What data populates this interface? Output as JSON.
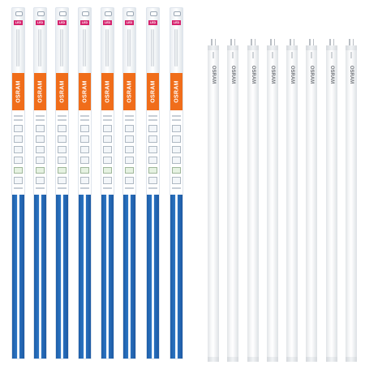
{
  "image": {
    "description_free": true
  },
  "packages": {
    "count": 8,
    "items": [
      {
        "brand": "OSRAM",
        "badge": "LED"
      },
      {
        "brand": "OSRAM",
        "badge": "LED"
      },
      {
        "brand": "OSRAM",
        "badge": "LED"
      },
      {
        "brand": "OSRAM",
        "badge": "LED"
      },
      {
        "brand": "OSRAM",
        "badge": "LED"
      },
      {
        "brand": "OSRAM",
        "badge": "LED"
      },
      {
        "brand": "OSRAM",
        "badge": "LED"
      },
      {
        "brand": "OSRAM",
        "badge": "LED"
      }
    ],
    "colors": {
      "box": "#2d78c8",
      "brand_band": "#f06d1a",
      "badge": "#d6246e"
    }
  },
  "tubes": {
    "count": 8,
    "items": [
      {
        "brand": "OSRAM"
      },
      {
        "brand": "OSRAM"
      },
      {
        "brand": "OSRAM"
      },
      {
        "brand": "OSRAM"
      },
      {
        "brand": "OSRAM"
      },
      {
        "brand": "OSRAM"
      },
      {
        "brand": "OSRAM"
      },
      {
        "brand": "OSRAM"
      }
    ]
  }
}
